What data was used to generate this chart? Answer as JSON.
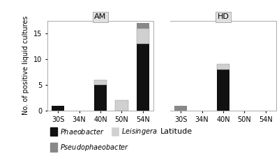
{
  "panels": [
    "AM",
    "HD"
  ],
  "categories": [
    "30S",
    "34N",
    "40N",
    "50N",
    "54N"
  ],
  "AM": {
    "Phaeobacter": [
      1,
      0,
      5,
      0,
      13
    ],
    "Leisingera": [
      0,
      0,
      1,
      2,
      3
    ],
    "Pseudophaeobacter": [
      0,
      0,
      0,
      0,
      1
    ]
  },
  "HD": {
    "Phaeobacter": [
      0,
      0,
      8,
      0,
      0
    ],
    "Leisingera": [
      0,
      0,
      1,
      0,
      0
    ],
    "Pseudophaeobacter": [
      1,
      0,
      0,
      0,
      0
    ]
  },
  "colors": {
    "Phaeobacter": "#111111",
    "Leisingera": "#d0d0d0",
    "Pseudophaeobacter": "#888888"
  },
  "ylabel": "No. of positive liquid cultures",
  "xlabel": "Latitude",
  "ylim": [
    0,
    17.5
  ],
  "yticks": [
    0,
    5,
    10,
    15
  ],
  "facet_bg": "#e0e0e0",
  "panel_bg": "#ffffff",
  "title_fontsize": 8,
  "axis_fontsize": 7,
  "legend_fontsize": 7,
  "bar_width": 0.6
}
